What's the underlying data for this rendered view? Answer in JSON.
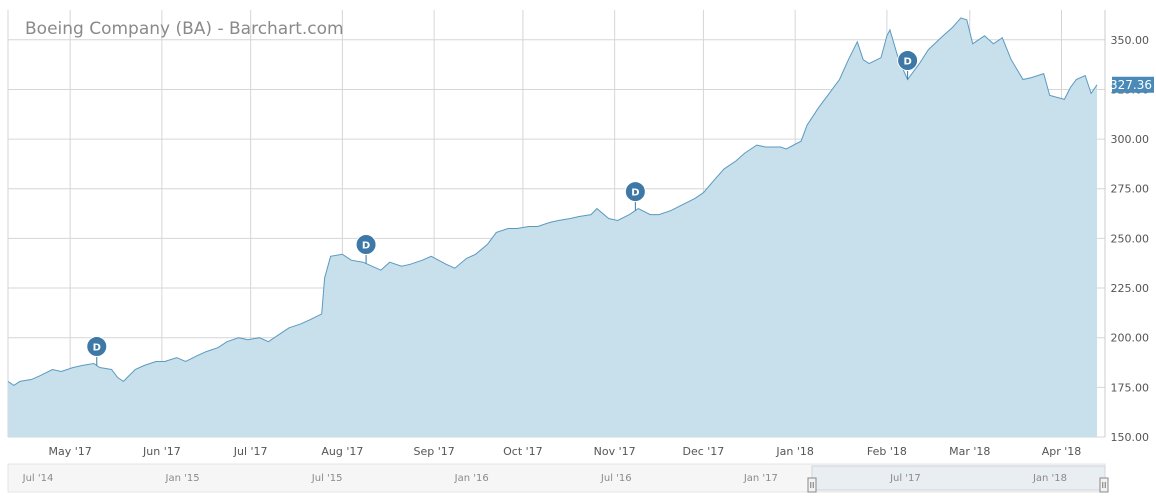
{
  "page": {
    "title": "Boeing Company (BA) - Barchart.com"
  },
  "colors": {
    "area_fill": "#c8dfec",
    "line": "#5b9ac0",
    "marker": "#3d78a6",
    "grid": "#d6d6d6",
    "navigator_bg": "#f6f6f6"
  },
  "chart_data": {
    "type": "area",
    "title": "Boeing Company (BA) - Barchart.com",
    "xlabel": "",
    "ylabel": "",
    "ylim": [
      150,
      365
    ],
    "y_ticks": [
      150,
      175,
      200,
      225,
      250,
      275,
      300,
      325,
      350
    ],
    "y_tick_labels": [
      "150.00",
      "175.00",
      "200.00",
      "225.00",
      "250.00",
      "275.00",
      "300.00",
      "325.00",
      "350.00"
    ],
    "y_axis_position": "right",
    "grid": true,
    "x_range": [
      "2017-04-10",
      "2018-04-13"
    ],
    "x_ticks": [
      {
        "date": "2017-05-01",
        "label": "May '17"
      },
      {
        "date": "2017-06-01",
        "label": "Jun '17"
      },
      {
        "date": "2017-07-01",
        "label": "Jul '17"
      },
      {
        "date": "2017-08-01",
        "label": "Aug '17"
      },
      {
        "date": "2017-09-01",
        "label": "Sep '17"
      },
      {
        "date": "2017-10-01",
        "label": "Oct '17"
      },
      {
        "date": "2017-11-01",
        "label": "Nov '17"
      },
      {
        "date": "2017-12-01",
        "label": "Dec '17"
      },
      {
        "date": "2018-01-01",
        "label": "Jan '18"
      },
      {
        "date": "2018-02-01",
        "label": "Feb '18"
      },
      {
        "date": "2018-03-01",
        "label": "Mar '18"
      },
      {
        "date": "2018-04-01",
        "label": "Apr '18"
      }
    ],
    "series": [
      {
        "points": [
          [
            "2017-04-10",
            178
          ],
          [
            "2017-04-12",
            176
          ],
          [
            "2017-04-14",
            178
          ],
          [
            "2017-04-18",
            179
          ],
          [
            "2017-04-21",
            181
          ],
          [
            "2017-04-25",
            184
          ],
          [
            "2017-04-28",
            183
          ],
          [
            "2017-05-02",
            185
          ],
          [
            "2017-05-05",
            186
          ],
          [
            "2017-05-09",
            187
          ],
          [
            "2017-05-11",
            185
          ],
          [
            "2017-05-15",
            184
          ],
          [
            "2017-05-17",
            180
          ],
          [
            "2017-05-19",
            178
          ],
          [
            "2017-05-23",
            184
          ],
          [
            "2017-05-26",
            186
          ],
          [
            "2017-05-30",
            188
          ],
          [
            "2017-06-02",
            188
          ],
          [
            "2017-06-06",
            190
          ],
          [
            "2017-06-09",
            188
          ],
          [
            "2017-06-13",
            191
          ],
          [
            "2017-06-16",
            193
          ],
          [
            "2017-06-20",
            195
          ],
          [
            "2017-06-23",
            198
          ],
          [
            "2017-06-27",
            200
          ],
          [
            "2017-06-30",
            199
          ],
          [
            "2017-07-04",
            200
          ],
          [
            "2017-07-07",
            198
          ],
          [
            "2017-07-11",
            202
          ],
          [
            "2017-07-14",
            205
          ],
          [
            "2017-07-18",
            207
          ],
          [
            "2017-07-21",
            209
          ],
          [
            "2017-07-25",
            212
          ],
          [
            "2017-07-26",
            230
          ],
          [
            "2017-07-28",
            241
          ],
          [
            "2017-08-01",
            242
          ],
          [
            "2017-08-04",
            239
          ],
          [
            "2017-08-08",
            238
          ],
          [
            "2017-08-11",
            236
          ],
          [
            "2017-08-14",
            234
          ],
          [
            "2017-08-17",
            238
          ],
          [
            "2017-08-21",
            236
          ],
          [
            "2017-08-24",
            237
          ],
          [
            "2017-08-28",
            239
          ],
          [
            "2017-08-31",
            241
          ],
          [
            "2017-09-05",
            237
          ],
          [
            "2017-09-08",
            235
          ],
          [
            "2017-09-12",
            240
          ],
          [
            "2017-09-15",
            242
          ],
          [
            "2017-09-19",
            247
          ],
          [
            "2017-09-22",
            253
          ],
          [
            "2017-09-26",
            255
          ],
          [
            "2017-09-29",
            255
          ],
          [
            "2017-10-03",
            256
          ],
          [
            "2017-10-06",
            256
          ],
          [
            "2017-10-10",
            258
          ],
          [
            "2017-10-13",
            259
          ],
          [
            "2017-10-17",
            260
          ],
          [
            "2017-10-20",
            261
          ],
          [
            "2017-10-24",
            262
          ],
          [
            "2017-10-26",
            265
          ],
          [
            "2017-10-30",
            260
          ],
          [
            "2017-11-02",
            259
          ],
          [
            "2017-11-06",
            262
          ],
          [
            "2017-11-09",
            265
          ],
          [
            "2017-11-13",
            262
          ],
          [
            "2017-11-16",
            262
          ],
          [
            "2017-11-20",
            264
          ],
          [
            "2017-11-24",
            267
          ],
          [
            "2017-11-28",
            270
          ],
          [
            "2017-12-01",
            273
          ],
          [
            "2017-12-05",
            280
          ],
          [
            "2017-12-08",
            285
          ],
          [
            "2017-12-12",
            289
          ],
          [
            "2017-12-15",
            293
          ],
          [
            "2017-12-19",
            297
          ],
          [
            "2017-12-22",
            296
          ],
          [
            "2017-12-27",
            296
          ],
          [
            "2017-12-29",
            295
          ],
          [
            "2018-01-03",
            299
          ],
          [
            "2018-01-05",
            307
          ],
          [
            "2018-01-09",
            316
          ],
          [
            "2018-01-12",
            322
          ],
          [
            "2018-01-16",
            330
          ],
          [
            "2018-01-19",
            340
          ],
          [
            "2018-01-22",
            349
          ],
          [
            "2018-01-24",
            340
          ],
          [
            "2018-01-26",
            338
          ],
          [
            "2018-01-30",
            341
          ],
          [
            "2018-02-01",
            352
          ],
          [
            "2018-02-02",
            355
          ],
          [
            "2018-02-05",
            340
          ],
          [
            "2018-02-08",
            330
          ],
          [
            "2018-02-12",
            338
          ],
          [
            "2018-02-15",
            345
          ],
          [
            "2018-02-20",
            352
          ],
          [
            "2018-02-23",
            356
          ],
          [
            "2018-02-26",
            361
          ],
          [
            "2018-02-28",
            360
          ],
          [
            "2018-03-02",
            348
          ],
          [
            "2018-03-06",
            352
          ],
          [
            "2018-03-09",
            348
          ],
          [
            "2018-03-12",
            351
          ],
          [
            "2018-03-15",
            340
          ],
          [
            "2018-03-19",
            330
          ],
          [
            "2018-03-22",
            331
          ],
          [
            "2018-03-26",
            333
          ],
          [
            "2018-03-28",
            322
          ],
          [
            "2018-04-02",
            320
          ],
          [
            "2018-04-04",
            326
          ],
          [
            "2018-04-06",
            330
          ],
          [
            "2018-04-09",
            332
          ],
          [
            "2018-04-11",
            323
          ],
          [
            "2018-04-13",
            327.36
          ]
        ]
      }
    ],
    "dividends": [
      {
        "date": "2017-05-10",
        "label": "D"
      },
      {
        "date": "2017-08-09",
        "label": "D"
      },
      {
        "date": "2017-11-08",
        "label": "D"
      },
      {
        "date": "2018-02-08",
        "label": "D"
      }
    ],
    "last_value_label": "327.36",
    "navigator": {
      "ticks": [
        "Jul '14",
        "Jan '15",
        "Jul '15",
        "Jan '16",
        "Jul '16",
        "Jan '17",
        "Jul '17",
        "Jan '18"
      ],
      "handle_left": "II",
      "handle_right": "II"
    }
  }
}
